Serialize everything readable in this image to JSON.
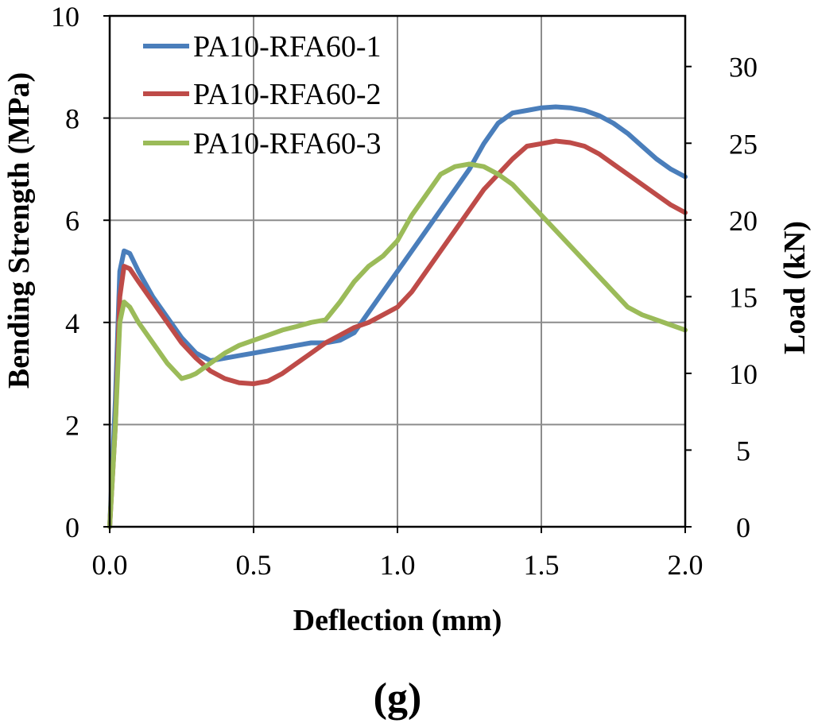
{
  "chart_data": {
    "type": "line",
    "title": "",
    "xlabel": "Deflection (mm)",
    "ylabel": "Bending Strength (MPa)",
    "y2label": "Load (kN)",
    "xlim": [
      0,
      2.0
    ],
    "ylim": [
      0,
      10
    ],
    "y2lim": [
      0,
      33.3
    ],
    "xticks": [
      "0.0",
      "0.5",
      "1.0",
      "1.5",
      "2.0"
    ],
    "xtick_values": [
      0,
      0.5,
      1.0,
      1.5,
      2.0
    ],
    "yticks": [
      "0",
      "2",
      "4",
      "6",
      "8",
      "10"
    ],
    "ytick_values": [
      0,
      2,
      4,
      6,
      8,
      10
    ],
    "y2ticks": [
      "0",
      "5",
      "10",
      "15",
      "20",
      "25",
      "30"
    ],
    "y2tick_values": [
      0,
      5,
      10,
      15,
      20,
      25,
      30
    ],
    "grid": true,
    "legend_position": "top-left",
    "caption": "(g)",
    "series": [
      {
        "name": "PA10-RFA60-1",
        "color": "#4a7ebb",
        "x": [
          0,
          0.02,
          0.035,
          0.05,
          0.07,
          0.1,
          0.15,
          0.2,
          0.25,
          0.3,
          0.35,
          0.4,
          0.45,
          0.5,
          0.55,
          0.6,
          0.65,
          0.7,
          0.75,
          0.8,
          0.85,
          0.9,
          0.95,
          1.0,
          1.05,
          1.1,
          1.15,
          1.2,
          1.25,
          1.3,
          1.35,
          1.4,
          1.45,
          1.5,
          1.55,
          1.6,
          1.65,
          1.7,
          1.75,
          1.8,
          1.85,
          1.9,
          1.95,
          2.0
        ],
        "y": [
          0,
          2.5,
          5.0,
          5.4,
          5.35,
          5.0,
          4.5,
          4.1,
          3.7,
          3.4,
          3.25,
          3.3,
          3.35,
          3.4,
          3.45,
          3.5,
          3.55,
          3.6,
          3.6,
          3.65,
          3.8,
          4.2,
          4.6,
          5.0,
          5.4,
          5.8,
          6.2,
          6.6,
          7.0,
          7.5,
          7.9,
          8.1,
          8.15,
          8.2,
          8.22,
          8.2,
          8.15,
          8.05,
          7.9,
          7.7,
          7.45,
          7.2,
          7.0,
          6.85
        ]
      },
      {
        "name": "PA10-RFA60-2",
        "color": "#be4b48",
        "x": [
          0,
          0.02,
          0.035,
          0.05,
          0.07,
          0.1,
          0.15,
          0.2,
          0.25,
          0.3,
          0.35,
          0.4,
          0.45,
          0.5,
          0.55,
          0.6,
          0.65,
          0.7,
          0.75,
          0.8,
          0.85,
          0.9,
          0.95,
          1.0,
          1.05,
          1.1,
          1.15,
          1.2,
          1.25,
          1.3,
          1.35,
          1.4,
          1.45,
          1.5,
          1.55,
          1.6,
          1.65,
          1.7,
          1.75,
          1.8,
          1.85,
          1.9,
          1.95,
          2.0
        ],
        "y": [
          0,
          2.0,
          4.5,
          5.1,
          5.05,
          4.8,
          4.4,
          4.0,
          3.6,
          3.3,
          3.05,
          2.9,
          2.82,
          2.8,
          2.85,
          3.0,
          3.2,
          3.4,
          3.6,
          3.75,
          3.9,
          4.0,
          4.15,
          4.3,
          4.6,
          5.0,
          5.4,
          5.8,
          6.2,
          6.6,
          6.9,
          7.2,
          7.45,
          7.5,
          7.55,
          7.52,
          7.45,
          7.3,
          7.1,
          6.9,
          6.7,
          6.5,
          6.3,
          6.15
        ]
      },
      {
        "name": "PA10-RFA60-3",
        "color": "#9bbb59",
        "x": [
          0,
          0.02,
          0.035,
          0.05,
          0.07,
          0.1,
          0.15,
          0.2,
          0.25,
          0.28,
          0.3,
          0.35,
          0.4,
          0.45,
          0.5,
          0.55,
          0.6,
          0.65,
          0.7,
          0.75,
          0.8,
          0.85,
          0.9,
          0.95,
          1.0,
          1.05,
          1.1,
          1.15,
          1.2,
          1.25,
          1.3,
          1.35,
          1.4,
          1.45,
          1.5,
          1.55,
          1.6,
          1.65,
          1.7,
          1.75,
          1.8,
          1.85,
          1.9,
          1.95,
          2.0
        ],
        "y": [
          0,
          2.0,
          4.0,
          4.4,
          4.3,
          4.0,
          3.6,
          3.2,
          2.9,
          2.95,
          3.0,
          3.2,
          3.4,
          3.55,
          3.65,
          3.75,
          3.85,
          3.92,
          4.0,
          4.05,
          4.4,
          4.8,
          5.1,
          5.3,
          5.6,
          6.1,
          6.5,
          6.9,
          7.05,
          7.1,
          7.05,
          6.9,
          6.7,
          6.4,
          6.1,
          5.8,
          5.5,
          5.2,
          4.9,
          4.6,
          4.3,
          4.15,
          4.05,
          3.95,
          3.85
        ]
      }
    ]
  }
}
